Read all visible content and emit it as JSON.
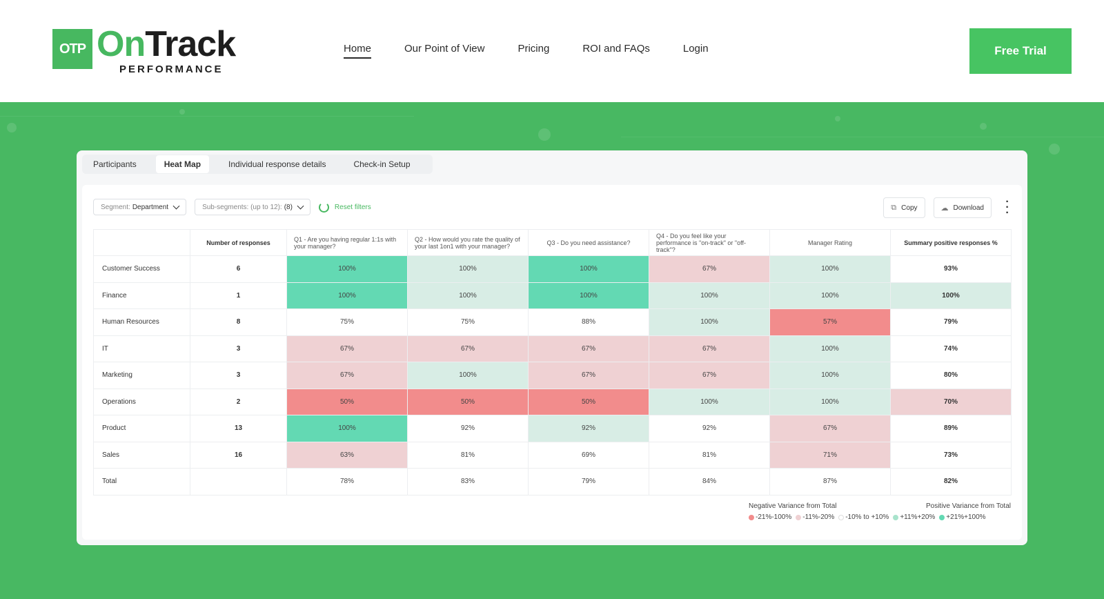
{
  "header": {
    "logo_badge": "OTP",
    "logo_on": "On",
    "logo_track": "Track",
    "logo_sub": "PERFORMANCE",
    "nav": [
      "Home",
      "Our Point of View",
      "Pricing",
      "ROI and FAQs",
      "Login"
    ],
    "cta": "Free Trial"
  },
  "card": {
    "tabs": [
      "Participants",
      "Heat Map",
      "Individual response details",
      "Check-in Setup"
    ],
    "filters": {
      "segment_label": "Segment:",
      "segment_value": "Department",
      "subsegments_label": "Sub-segments: (up to 12):",
      "subsegments_value": "(8)",
      "reset": "Reset filters"
    },
    "actions": {
      "copy": "Copy",
      "download": "Download"
    },
    "table": {
      "headers": [
        "",
        "Number of responses",
        "Q1 - Are you having regular 1:1s with your manager?",
        "Q2 - How would you rate the quality of your last 1on1 with your manager?",
        "Q3 - Do you need assistance?",
        "Q4 - Do you feel like your performance is \"on-track\" or \"off-track\"?",
        "Manager Rating",
        "Summary positive responses %"
      ],
      "rows": [
        {
          "label": "Customer Success",
          "n": "6",
          "cells": [
            {
              "v": "100%",
              "c": "#63d9b3"
            },
            {
              "v": "100%",
              "c": "#d8ede5"
            },
            {
              "v": "100%",
              "c": "#63d9b3"
            },
            {
              "v": "67%",
              "c": "#efd1d3"
            },
            {
              "v": "100%",
              "c": "#d8ede5"
            },
            {
              "v": "93%",
              "c": "#ffffff"
            }
          ]
        },
        {
          "label": "Finance",
          "n": "1",
          "cells": [
            {
              "v": "100%",
              "c": "#63d9b3"
            },
            {
              "v": "100%",
              "c": "#d8ede5"
            },
            {
              "v": "100%",
              "c": "#63d9b3"
            },
            {
              "v": "100%",
              "c": "#d8ede5"
            },
            {
              "v": "100%",
              "c": "#d8ede5"
            },
            {
              "v": "100%",
              "c": "#d8ede5"
            }
          ]
        },
        {
          "label": "Human Resources",
          "n": "8",
          "cells": [
            {
              "v": "75%",
              "c": "#ffffff"
            },
            {
              "v": "75%",
              "c": "#ffffff"
            },
            {
              "v": "88%",
              "c": "#ffffff"
            },
            {
              "v": "100%",
              "c": "#d8ede5"
            },
            {
              "v": "57%",
              "c": "#f28c8c"
            },
            {
              "v": "79%",
              "c": "#ffffff"
            }
          ]
        },
        {
          "label": "IT",
          "n": "3",
          "cells": [
            {
              "v": "67%",
              "c": "#efd1d3"
            },
            {
              "v": "67%",
              "c": "#efd1d3"
            },
            {
              "v": "67%",
              "c": "#efd1d3"
            },
            {
              "v": "67%",
              "c": "#efd1d3"
            },
            {
              "v": "100%",
              "c": "#d8ede5"
            },
            {
              "v": "74%",
              "c": "#ffffff"
            }
          ]
        },
        {
          "label": "Marketing",
          "n": "3",
          "cells": [
            {
              "v": "67%",
              "c": "#efd1d3"
            },
            {
              "v": "100%",
              "c": "#d8ede5"
            },
            {
              "v": "67%",
              "c": "#efd1d3"
            },
            {
              "v": "67%",
              "c": "#efd1d3"
            },
            {
              "v": "100%",
              "c": "#d8ede5"
            },
            {
              "v": "80%",
              "c": "#ffffff"
            }
          ]
        },
        {
          "label": "Operations",
          "n": "2",
          "cells": [
            {
              "v": "50%",
              "c": "#f28c8c"
            },
            {
              "v": "50%",
              "c": "#f28c8c"
            },
            {
              "v": "50%",
              "c": "#f28c8c"
            },
            {
              "v": "100%",
              "c": "#d8ede5"
            },
            {
              "v": "100%",
              "c": "#d8ede5"
            },
            {
              "v": "70%",
              "c": "#efd1d3"
            }
          ]
        },
        {
          "label": "Product",
          "n": "13",
          "cells": [
            {
              "v": "100%",
              "c": "#63d9b3"
            },
            {
              "v": "92%",
              "c": "#ffffff"
            },
            {
              "v": "92%",
              "c": "#d8ede5"
            },
            {
              "v": "92%",
              "c": "#ffffff"
            },
            {
              "v": "67%",
              "c": "#efd1d3"
            },
            {
              "v": "89%",
              "c": "#ffffff"
            }
          ]
        },
        {
          "label": "Sales",
          "n": "16",
          "cells": [
            {
              "v": "63%",
              "c": "#efd1d3"
            },
            {
              "v": "81%",
              "c": "#ffffff"
            },
            {
              "v": "69%",
              "c": "#ffffff"
            },
            {
              "v": "81%",
              "c": "#ffffff"
            },
            {
              "v": "71%",
              "c": "#efd1d3"
            },
            {
              "v": "73%",
              "c": "#ffffff"
            }
          ]
        },
        {
          "label": "Total",
          "n": "",
          "cells": [
            {
              "v": "78%",
              "c": "#ffffff"
            },
            {
              "v": "83%",
              "c": "#ffffff"
            },
            {
              "v": "79%",
              "c": "#ffffff"
            },
            {
              "v": "84%",
              "c": "#ffffff"
            },
            {
              "v": "87%",
              "c": "#ffffff"
            },
            {
              "v": "82%",
              "c": "#ffffff"
            }
          ]
        }
      ]
    },
    "legend": {
      "negative_title": "Negative Variance from Total",
      "positive_title": "Positive Variance from Total",
      "items": [
        {
          "label": "-21%-100%",
          "color": "#f28c8c"
        },
        {
          "label": "-11%-20%",
          "color": "#efd1d3"
        },
        {
          "label": "-10% to +10%",
          "color": "#ffffff"
        },
        {
          "label": "+11%+20%",
          "color": "#a8e3cc"
        },
        {
          "label": "+21%+100%",
          "color": "#63d9b3"
        }
      ]
    }
  },
  "colors": {
    "brand_green": "#47b860",
    "cta_green": "#47c462"
  }
}
